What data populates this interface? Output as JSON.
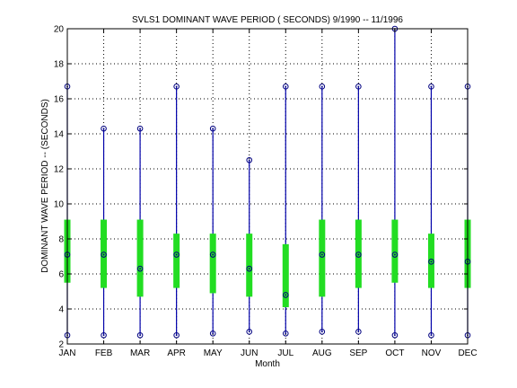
{
  "chart_data": {
    "type": "box",
    "title": "SVLS1  DOMINANT WAVE PERIOD ( SECONDS) 9/1990 -- 11/1996",
    "xlabel": "Month",
    "ylabel": "DOMINANT WAVE PERIOD -- (SECONDS)",
    "ylim": [
      2,
      20
    ],
    "yticks": [
      2,
      4,
      6,
      8,
      10,
      12,
      14,
      16,
      18,
      20
    ],
    "grid": true,
    "categories": [
      "JAN",
      "FEB",
      "MAR",
      "APR",
      "MAY",
      "JUN",
      "JUL",
      "AUG",
      "SEP",
      "OCT",
      "NOV",
      "DEC"
    ],
    "min": [
      2.5,
      2.5,
      2.5,
      2.5,
      2.6,
      2.7,
      2.6,
      2.7,
      2.7,
      2.5,
      2.5,
      2.5
    ],
    "q1": [
      5.5,
      5.2,
      4.7,
      5.2,
      4.9,
      4.7,
      4.1,
      4.7,
      5.2,
      5.5,
      5.2,
      5.2
    ],
    "median": [
      7.1,
      7.1,
      6.3,
      7.1,
      7.1,
      6.3,
      4.8,
      7.1,
      7.1,
      7.1,
      6.7,
      6.7
    ],
    "q3": [
      9.1,
      9.1,
      9.1,
      8.3,
      8.3,
      8.3,
      7.7,
      9.1,
      9.1,
      9.1,
      8.3,
      9.1
    ],
    "max": [
      16.7,
      14.3,
      14.3,
      16.7,
      14.3,
      12.5,
      16.7,
      16.7,
      16.7,
      20.0,
      16.7,
      16.7
    ],
    "colors": {
      "whisker": "#0000aa",
      "box": "#22dd22",
      "marker": "#000080",
      "grid": "#000000"
    }
  }
}
